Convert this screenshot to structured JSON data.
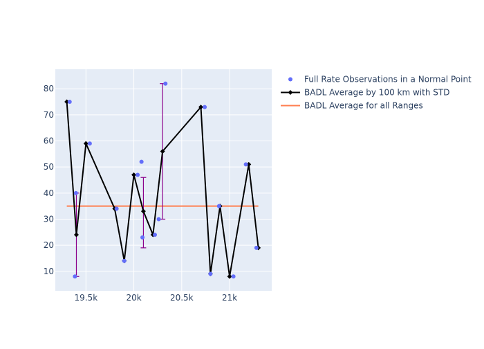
{
  "chart_data": {
    "type": "scatter",
    "xlim": [
      19180,
      21440
    ],
    "ylim": [
      2.5,
      87.5
    ],
    "x_ticks": [
      19500,
      20000,
      20500,
      21000
    ],
    "x_tick_labels": [
      "19.5k",
      "20k",
      "20.5k",
      "21k"
    ],
    "y_ticks": [
      10,
      20,
      30,
      40,
      50,
      60,
      70,
      80
    ],
    "y_tick_labels": [
      "10",
      "20",
      "30",
      "40",
      "50",
      "60",
      "70",
      "80"
    ],
    "grid": true,
    "legend_placement": "top-right",
    "colors": {
      "plot_bg": "#E5ECF6",
      "grid": "#ffffff",
      "points": "#636EFA",
      "line": "#000000",
      "error": "#8B008B",
      "overall": "#FF7F50",
      "text": "#2A3F5F"
    },
    "series": [
      {
        "name": "Full Rate Observations in a Normal Point",
        "kind": "points",
        "x": [
          19330,
          19385,
          19395,
          19540,
          19820,
          19900,
          20040,
          20080,
          20090,
          20220,
          20260,
          20330,
          20740,
          20800,
          20890,
          21040,
          21170,
          21280
        ],
        "y": [
          75,
          8,
          40,
          59,
          34,
          14,
          47,
          52,
          23,
          24,
          30,
          82,
          73,
          9,
          35,
          8,
          51,
          19
        ]
      },
      {
        "name": "BADL Average by 100 km with STD",
        "kind": "line",
        "x": [
          19300,
          19400,
          19500,
          19800,
          19900,
          20000,
          20100,
          20200,
          20300,
          20700,
          20800,
          20900,
          21000,
          21200,
          21300
        ],
        "y": [
          75,
          24,
          59,
          34,
          14,
          47,
          33,
          24,
          56,
          73,
          9,
          35,
          8,
          51,
          19
        ],
        "error_bars": [
          {
            "x": 19400,
            "low": 8,
            "high": 40
          },
          {
            "x": 20100,
            "low": 19,
            "high": 46
          },
          {
            "x": 20300,
            "low": 30,
            "high": 82
          }
        ]
      },
      {
        "name": "BADL Average for all Ranges",
        "kind": "hline",
        "x": [
          19300,
          21300
        ],
        "y": [
          35,
          35
        ]
      }
    ]
  }
}
